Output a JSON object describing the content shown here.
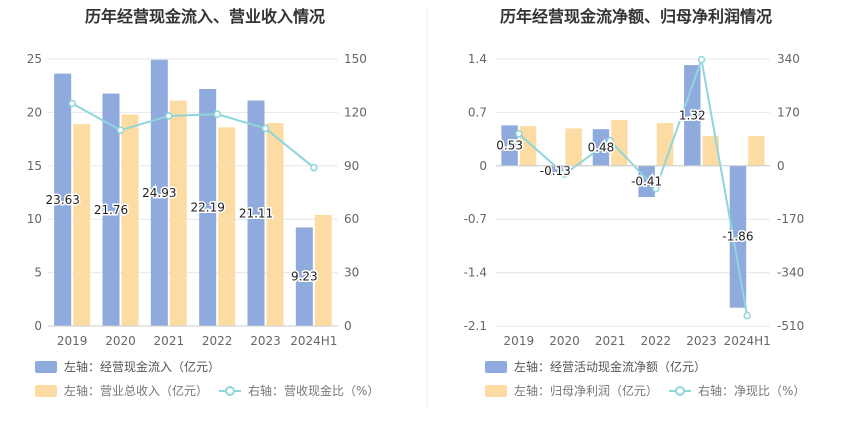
{
  "colors": {
    "bar_primary": "#8faadc",
    "bar_secondary": "#fddca3",
    "line": "#8fd6dc",
    "grid": "#e4e7ed",
    "divider": "#eeeeee"
  },
  "chart_data": [
    {
      "type": "bar",
      "title": "历年经营现金流入、营业收入情况",
      "categories": [
        "2019",
        "2020",
        "2021",
        "2022",
        "2023",
        "2024H1"
      ],
      "left_axis": {
        "min": 0,
        "max": 25,
        "ticks": [
          "0",
          "5",
          "10",
          "15",
          "20",
          "25"
        ]
      },
      "right_axis": {
        "min": 0,
        "max": 150,
        "ticks": [
          "0",
          "30",
          "60",
          "90",
          "120",
          "150"
        ]
      },
      "series": [
        {
          "name": "左轴：经营现金流入（亿元）",
          "axis": "left",
          "kind": "bar",
          "values": [
            23.63,
            21.76,
            24.93,
            22.19,
            21.11,
            9.23
          ],
          "labels": [
            "23.63",
            "21.76",
            "24.93",
            "22.19",
            "21.11",
            "9.23"
          ]
        },
        {
          "name": "左轴：营业总收入（亿元）",
          "axis": "left",
          "kind": "bar",
          "values": [
            18.9,
            19.8,
            21.1,
            18.6,
            19.0,
            10.4
          ]
        },
        {
          "name": "右轴：营收现金比（%）",
          "axis": "right",
          "kind": "line",
          "values": [
            125,
            110,
            118,
            119,
            111,
            89
          ]
        }
      ]
    },
    {
      "type": "bar",
      "title": "历年经营现金流净额、归母净利润情况",
      "categories": [
        "2019",
        "2020",
        "2021",
        "2022",
        "2023",
        "2024H1"
      ],
      "left_axis": {
        "min": -2.1,
        "max": 1.4,
        "ticks": [
          "-2.1",
          "-1.4",
          "-0.7",
          "0",
          "0.7",
          "1.4"
        ]
      },
      "right_axis": {
        "min": -510,
        "max": 340,
        "ticks": [
          "-510",
          "-340",
          "-170",
          "0",
          "170",
          "340"
        ]
      },
      "series": [
        {
          "name": "左轴：经营活动现金流净额（亿元）",
          "axis": "left",
          "kind": "bar",
          "values": [
            0.53,
            -0.13,
            0.48,
            -0.41,
            1.32,
            -1.86
          ],
          "labels": [
            "0.53",
            "-0.13",
            "0.48",
            "-0.41",
            "1.32",
            "-1.86"
          ]
        },
        {
          "name": "左轴：归母净利润（亿元）",
          "axis": "left",
          "kind": "bar",
          "values": [
            0.52,
            0.49,
            0.6,
            0.56,
            0.39,
            0.39
          ]
        },
        {
          "name": "右轴：净现比（%）",
          "axis": "right",
          "kind": "line",
          "values": [
            102,
            -27,
            80,
            -73,
            338,
            -477
          ]
        }
      ]
    }
  ]
}
